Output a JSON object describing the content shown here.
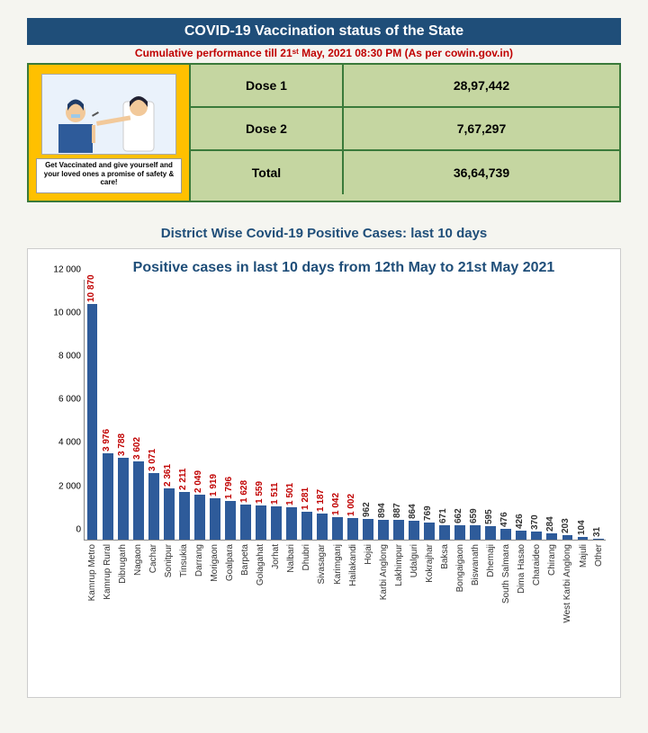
{
  "vaccination": {
    "title": "COVID-19 Vaccination status of the State",
    "subtitle": "Cumulative performance till 21ˢᵗ May, 2021 08:30  PM (As per cowin.gov.in)",
    "caption": "Get Vaccinated and give yourself and your loved ones a promise of safety & care!",
    "rows": [
      {
        "label": "Dose 1",
        "value": "28,97,442"
      },
      {
        "label": "Dose 2",
        "value": "7,67,297"
      },
      {
        "label": "Total",
        "value": "36,64,739"
      }
    ],
    "title_bg": "#1f4e79",
    "title_color": "#ffffff",
    "subtitle_color": "#c00000",
    "left_bg": "#ffc000",
    "cell_bg": "#c5d6a1",
    "border_color": "#3a7a3a"
  },
  "chart": {
    "section_title": "District Wise Covid-19 Positive Cases: last 10 days",
    "title": "Positive cases in last 10 days from 12th May to 21st May 2021",
    "type": "bar",
    "bar_color": "#2e5b9a",
    "title_color": "#1f4e79",
    "background_color": "#ffffff",
    "axis_color": "#888888",
    "ylim_max": 12000,
    "yticks": [
      0,
      2000,
      4000,
      6000,
      8000,
      10000,
      12000
    ],
    "ytick_labels": [
      "0",
      "2 000",
      "4 000",
      "6 000",
      "8 000",
      "10 000",
      "12 000"
    ],
    "high_value_color": "#c00000",
    "low_value_color": "#333333",
    "high_value_threshold": 1000,
    "label_fontsize": 10,
    "title_fontsize": 16,
    "districts": [
      {
        "name": "Kamrup Metro",
        "value": 10870,
        "label": "10 870"
      },
      {
        "name": "Kamrup Rural",
        "value": 3976,
        "label": "3 976"
      },
      {
        "name": "Dibrugarh",
        "value": 3788,
        "label": "3 788"
      },
      {
        "name": "Nagaon",
        "value": 3602,
        "label": "3 602"
      },
      {
        "name": "Cachar",
        "value": 3071,
        "label": "3 071"
      },
      {
        "name": "Sonitpur",
        "value": 2361,
        "label": "2 361"
      },
      {
        "name": "Tinsukia",
        "value": 2211,
        "label": "2 211"
      },
      {
        "name": "Darrang",
        "value": 2049,
        "label": "2 049"
      },
      {
        "name": "Morigaon",
        "value": 1919,
        "label": "1 919"
      },
      {
        "name": "Goalpara",
        "value": 1796,
        "label": "1 796"
      },
      {
        "name": "Barpeta",
        "value": 1628,
        "label": "1 628"
      },
      {
        "name": "Golagahat",
        "value": 1559,
        "label": "1 559"
      },
      {
        "name": "Jorhat",
        "value": 1511,
        "label": "1 511"
      },
      {
        "name": "Nalbari",
        "value": 1501,
        "label": "1 501"
      },
      {
        "name": "Dhubri",
        "value": 1281,
        "label": "1 281"
      },
      {
        "name": "Sivasagar",
        "value": 1187,
        "label": "1 187"
      },
      {
        "name": "Karimganj",
        "value": 1042,
        "label": "1 042"
      },
      {
        "name": "Hailakandi",
        "value": 1002,
        "label": "1 002"
      },
      {
        "name": "Hojai",
        "value": 962,
        "label": "962"
      },
      {
        "name": "Karbi Anglong",
        "value": 894,
        "label": "894"
      },
      {
        "name": "Lakhimpur",
        "value": 887,
        "label": "887"
      },
      {
        "name": "Udalguri",
        "value": 864,
        "label": "864"
      },
      {
        "name": "Kokrajhar",
        "value": 769,
        "label": "769"
      },
      {
        "name": "Baksa",
        "value": 671,
        "label": "671"
      },
      {
        "name": "Bongaigaon",
        "value": 662,
        "label": "662"
      },
      {
        "name": "Biswanath",
        "value": 659,
        "label": "659"
      },
      {
        "name": "Dhemaji",
        "value": 595,
        "label": "595"
      },
      {
        "name": "South Salmara",
        "value": 476,
        "label": "476"
      },
      {
        "name": "Dima Hasao",
        "value": 426,
        "label": "426"
      },
      {
        "name": "Charaideo",
        "value": 370,
        "label": "370"
      },
      {
        "name": "Chirang",
        "value": 284,
        "label": "284"
      },
      {
        "name": "West Karbi Anglong",
        "value": 203,
        "label": "203"
      },
      {
        "name": "Majuli",
        "value": 104,
        "label": "104"
      },
      {
        "name": "Other",
        "value": 31,
        "label": "31"
      }
    ]
  }
}
